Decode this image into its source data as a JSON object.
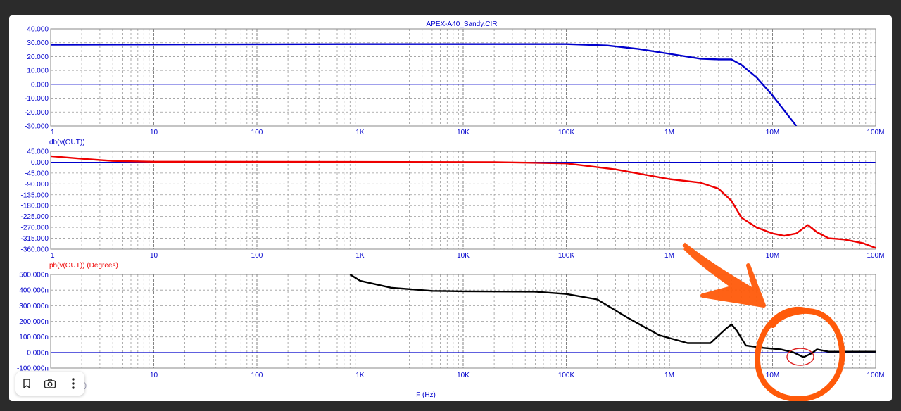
{
  "window_title": "APEX-A40_Sandy.CIR",
  "x_axis": {
    "label": "F (Hz)",
    "scale": "log",
    "range": [
      1,
      100000000
    ],
    "tick_labels": [
      "1",
      "10",
      "100",
      "1K",
      "10K",
      "100K",
      "1M",
      "10M",
      "100M"
    ],
    "grid": true
  },
  "colors": {
    "axis": "#0000cc",
    "grid": "#9a9a9a",
    "annotation": "#ff5a0a"
  },
  "chart_data": [
    {
      "type": "line",
      "ylabel": "db(v(OUT))",
      "ylim": [
        -30,
        40
      ],
      "y_tick_labels": [
        "40.000",
        "30.000",
        "20.000",
        "10.000",
        "0.000",
        "-10.000",
        "-20.000",
        "-30.000"
      ],
      "grid": true,
      "series": [
        {
          "name": "db(v(OUT))",
          "color": "#0000cc",
          "points": [
            [
              1,
              28.6
            ],
            [
              1000,
              29.0
            ],
            [
              100000,
              29.0
            ],
            [
              250000,
              28.0
            ],
            [
              500000,
              25.5
            ],
            [
              1000000,
              22.0
            ],
            [
              2000000,
              18.5
            ],
            [
              3000000,
              18.0
            ],
            [
              4000000,
              18.0
            ],
            [
              5000000,
              14.0
            ],
            [
              7000000,
              5.0
            ],
            [
              10000000,
              -8.0
            ],
            [
              14000000,
              -22.0
            ],
            [
              17000000,
              -30.0
            ]
          ]
        }
      ]
    },
    {
      "type": "line",
      "ylabel": "ph(v(OUT)) (Degrees)",
      "ylim": [
        -360,
        45
      ],
      "y_tick_labels": [
        "45.000",
        "0.000",
        "-45.000",
        "-90.000",
        "-135.000",
        "-180.000",
        "-225.000",
        "-270.000",
        "-315.000",
        "-360.000"
      ],
      "grid": true,
      "series": [
        {
          "name": "ph(v(OUT)) (Degrees)",
          "color": "#ee0000",
          "points": [
            [
              1,
              25
            ],
            [
              2,
              14
            ],
            [
              4,
              5
            ],
            [
              10,
              2
            ],
            [
              1000,
              1
            ],
            [
              20000,
              0
            ],
            [
              100000,
              -5
            ],
            [
              300000,
              -30
            ],
            [
              1000000,
              -70
            ],
            [
              2000000,
              -85
            ],
            [
              3000000,
              -110
            ],
            [
              4000000,
              -160
            ],
            [
              5000000,
              -230
            ],
            [
              7000000,
              -270
            ],
            [
              10000000,
              -295
            ],
            [
              13000000,
              -305
            ],
            [
              17000000,
              -295
            ],
            [
              22000000,
              -260
            ],
            [
              27000000,
              -290
            ],
            [
              35000000,
              -315
            ],
            [
              50000000,
              -320
            ],
            [
              75000000,
              -335
            ],
            [
              100000000,
              -355
            ]
          ]
        }
      ]
    },
    {
      "type": "line",
      "ylim": [
        -100,
        500
      ],
      "y_tick_labels": [
        "500.000n",
        "400.000n",
        "300.000n",
        "200.000n",
        "100.000n",
        "0.000n",
        "-100.000n"
      ],
      "grid": true,
      "series": [
        {
          "color": "#000000",
          "points": [
            [
              800,
              500
            ],
            [
              1000,
              460
            ],
            [
              2000,
              415
            ],
            [
              5000,
              395
            ],
            [
              10000,
              392
            ],
            [
              50000,
              390
            ],
            [
              100000,
              375
            ],
            [
              200000,
              340
            ],
            [
              400000,
              220
            ],
            [
              800000,
              110
            ],
            [
              1500000,
              60
            ],
            [
              2500000,
              60
            ],
            [
              3500000,
              150
            ],
            [
              4000000,
              180
            ],
            [
              4500000,
              140
            ],
            [
              5500000,
              45
            ],
            [
              8000000,
              30
            ],
            [
              12000000,
              20
            ],
            [
              16000000,
              0
            ],
            [
              20000000,
              -30
            ],
            [
              24000000,
              -5
            ],
            [
              27000000,
              20
            ],
            [
              35000000,
              5
            ],
            [
              100000000,
              5
            ]
          ]
        }
      ]
    }
  ],
  "toolbar": {
    "bookmark": "bookmark-icon",
    "screenshot": "camera-icon",
    "more": "more-icon",
    "partial_label": "v(OUT))"
  }
}
